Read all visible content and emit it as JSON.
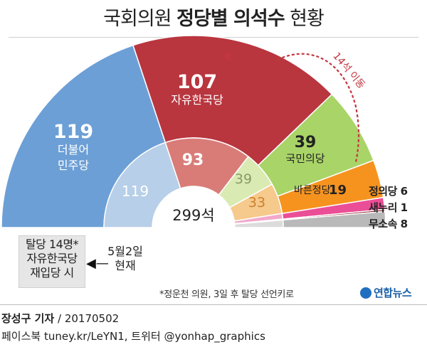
{
  "title_light": "국회의원",
  "title_bold": "정당별 의석수",
  "title_suffix": "현황",
  "move_label": "14석 이동",
  "total_label": "299석",
  "side_labels": {
    "justice": "정의당 6",
    "saenuri": "새누리 1",
    "independent": "무소속 8"
  },
  "scenario_box": [
    "탈당 14명*",
    "자유한국당",
    "재입당 시"
  ],
  "date_box": [
    "5월2일",
    "현재"
  ],
  "footnote": "*정운천 의원, 3일 후 탈당 선언키로",
  "logo_text": "연합뉴스",
  "credit_name": "장성구 기자",
  "credit_date": "/ 20170502",
  "social": "페이스북 tuney.kr/LeYN1, 트위터 @yonhap_graphics",
  "colors": {
    "democratic": "#6c9fd6",
    "liberty": "#b9363f",
    "peoples": "#a9d468",
    "bareun": "#f6931f",
    "justice": "#ea4e96",
    "saenuri": "#8e1e2b",
    "independent": "#b9b9b9"
  },
  "chart_data": [
    {
      "type": "pie",
      "name": "scenario",
      "slices": [
        {
          "label": "더불어민주당",
          "line1": "더불어",
          "line2": "민주당",
          "value": 119,
          "color": "#6c9fd6"
        },
        {
          "label": "자유한국당",
          "value": 107,
          "color": "#b9363f"
        },
        {
          "label": "국민의당",
          "value": 39,
          "color": "#a9d468"
        },
        {
          "label": "바른정당",
          "value": 19,
          "color": "#f6931f"
        },
        {
          "label": "정의당",
          "value": 6,
          "color": "#ea4e96"
        },
        {
          "label": "새누리",
          "value": 1,
          "color": "#8e1e2b"
        },
        {
          "label": "무소속",
          "value": 8,
          "color": "#b9b9b9"
        }
      ]
    },
    {
      "type": "pie",
      "name": "current",
      "slices": [
        {
          "value": 119,
          "color": "#b7cfe8"
        },
        {
          "value": 93,
          "color": "#d97c78"
        },
        {
          "value": 39,
          "color": "#d9ebb3"
        },
        {
          "value": 33,
          "color": "#f6c98c"
        },
        {
          "value": 6,
          "color": "#f2a9cb"
        },
        {
          "value": 1,
          "color": "#c27a83"
        },
        {
          "value": 8,
          "color": "#dcdcdc"
        }
      ]
    }
  ]
}
